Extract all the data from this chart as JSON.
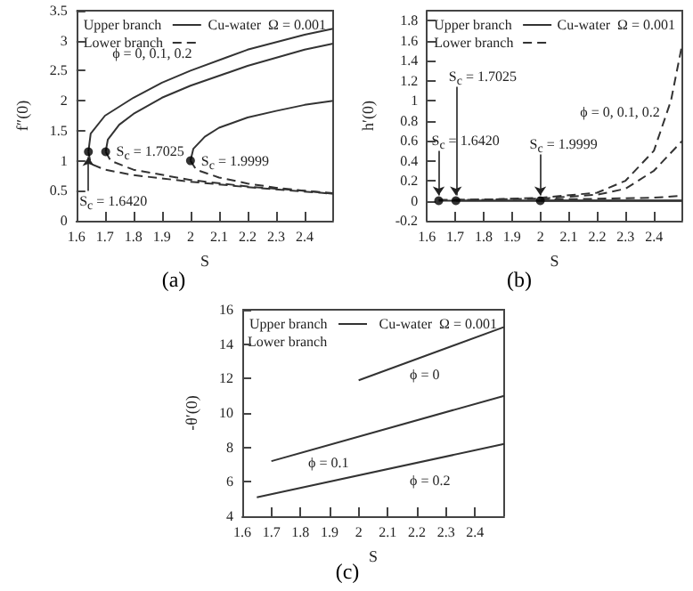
{
  "chart_data": [
    {
      "type": "line",
      "title": "(a)",
      "xlabel": "S",
      "ylabel": "f″(0)",
      "xlim": [
        1.6,
        2.5
      ],
      "xticks": [
        1.6,
        1.7,
        1.8,
        1.9,
        2,
        2.1,
        2.2,
        2.3,
        2.4
      ],
      "ylim": [
        0,
        3.5
      ],
      "yticks": [
        0,
        0.5,
        1,
        1.5,
        2,
        2.5,
        3,
        3.5
      ],
      "grid": false,
      "legend": "top left",
      "marker": "none",
      "annotations": [
        "Cu-water  Ω = 0.001",
        "ϕ = 0, 0.1, 0.2",
        {
          "text": "S$_{c}$ = 1.6420",
          "x": 1.642,
          "y": 1.15
        },
        {
          "text": "S$_{c}$ = 1.7025",
          "x": 1.7025,
          "y": 1.15
        },
        {
          "text": "S$_{c}$ = 1.9999",
          "x": 1.9999,
          "y": 1.0
        }
      ],
      "series": [
        {
          "name": "Upper branch",
          "color": "#333333",
          "line_style": "solid",
          "x": [
            1.642,
            1.65,
            1.7,
            1.8,
            1.9,
            2.0,
            2.2,
            2.4,
            2.5
          ],
          "values": [
            1.15,
            1.45,
            1.75,
            2.05,
            2.3,
            2.5,
            2.85,
            3.1,
            3.2
          ]
        },
        {
          "color": "#333333",
          "line_style": "solid",
          "x": [
            1.7025,
            1.71,
            1.75,
            1.8,
            1.9,
            2.0,
            2.2,
            2.4,
            2.5
          ],
          "values": [
            1.15,
            1.35,
            1.6,
            1.78,
            2.05,
            2.25,
            2.58,
            2.85,
            2.95
          ]
        },
        {
          "color": "#333333",
          "line_style": "solid",
          "x": [
            1.9999,
            2.01,
            2.05,
            2.1,
            2.2,
            2.3,
            2.4,
            2.5
          ],
          "values": [
            1.0,
            1.2,
            1.4,
            1.55,
            1.72,
            1.83,
            1.93,
            2.0
          ]
        },
        {
          "name": "Lower branch",
          "color": "#333333",
          "line_style": "dashed",
          "x": [
            1.642,
            1.65,
            1.7,
            1.8,
            2.0,
            2.2,
            2.5
          ],
          "values": [
            1.15,
            0.95,
            0.85,
            0.76,
            0.65,
            0.56,
            0.45
          ]
        },
        {
          "color": "#333333",
          "line_style": "dashed",
          "x": [
            1.7025,
            1.72,
            1.8,
            2.0,
            2.2,
            2.5
          ],
          "values": [
            1.15,
            1.0,
            0.85,
            0.68,
            0.57,
            0.46
          ]
        },
        {
          "color": "#333333",
          "line_style": "dashed",
          "x": [
            1.9999,
            2.02,
            2.1,
            2.2,
            2.3,
            2.5
          ],
          "values": [
            1.0,
            0.85,
            0.72,
            0.62,
            0.55,
            0.45
          ]
        },
        {
          "type": "scatter",
          "marker": "circle",
          "color": "#000000",
          "x": [
            1.642,
            1.7025,
            1.9999
          ],
          "values": [
            1.15,
            1.15,
            1.0
          ]
        }
      ]
    },
    {
      "type": "line",
      "title": "(b)",
      "xlabel": "S",
      "ylabel": "h′(0)",
      "xlim": [
        1.6,
        2.5
      ],
      "xticks": [
        1.6,
        1.7,
        1.8,
        1.9,
        2,
        2.1,
        2.2,
        2.3,
        2.4
      ],
      "ylim": [
        -0.2,
        1.9
      ],
      "yticks": [
        -0.2,
        0,
        0.2,
        0.4,
        0.6,
        0.8,
        1,
        1.2,
        1.4,
        1.6,
        1.8
      ],
      "grid": false,
      "legend": "top left",
      "marker": "none",
      "annotations": [
        "Cu-water  Ω = 0.001",
        "ϕ = 0, 0.1, 0.2",
        {
          "text": "S$_{c}$ = 1.6420",
          "x": 1.642,
          "y": 0
        },
        {
          "text": "S$_{c}$ = 1.7025",
          "x": 1.7025,
          "y": 0
        },
        {
          "text": "S$_{c}$ = 1.9999",
          "x": 1.9999,
          "y": 0
        }
      ],
      "series": [
        {
          "name": "Upper branch",
          "color": "#333333",
          "line_style": "solid",
          "x": [
            1.642,
            2.0,
            2.5
          ],
          "values": [
            0,
            0,
            0
          ]
        },
        {
          "color": "#333333",
          "line_style": "solid",
          "x": [
            1.7025,
            2.0,
            2.5
          ],
          "values": [
            0,
            0,
            0
          ]
        },
        {
          "color": "#333333",
          "line_style": "solid",
          "x": [
            1.9999,
            2.2,
            2.5
          ],
          "values": [
            0,
            0,
            0
          ]
        },
        {
          "name": "Lower branch",
          "color": "#333333",
          "line_style": "dashed",
          "x": [
            1.642,
            1.8,
            2.0,
            2.2,
            2.3,
            2.4,
            2.46,
            2.5
          ],
          "values": [
            0.01,
            0.01,
            0.03,
            0.08,
            0.2,
            0.5,
            1.0,
            1.57
          ]
        },
        {
          "color": "#333333",
          "line_style": "dashed",
          "x": [
            1.7025,
            2.0,
            2.2,
            2.3,
            2.4,
            2.5
          ],
          "values": [
            0.01,
            0.02,
            0.06,
            0.12,
            0.3,
            0.6
          ]
        },
        {
          "color": "#333333",
          "line_style": "dashed",
          "x": [
            1.9999,
            2.2,
            2.4,
            2.5
          ],
          "values": [
            0.01,
            0.02,
            0.03,
            0.05
          ]
        },
        {
          "type": "scatter",
          "marker": "circle",
          "color": "#000000",
          "x": [
            1.642,
            1.7025,
            1.9999
          ],
          "values": [
            0,
            0,
            0
          ]
        }
      ]
    },
    {
      "type": "line",
      "title": "(c)",
      "xlabel": "S",
      "ylabel": "-θ′(0)",
      "xlim": [
        1.6,
        2.5
      ],
      "xticks": [
        1.6,
        1.7,
        1.8,
        1.9,
        2,
        2.1,
        2.2,
        2.3,
        2.4
      ],
      "ylim": [
        4,
        16
      ],
      "yticks": [
        4,
        6,
        8,
        10,
        12,
        14,
        16
      ],
      "grid": false,
      "legend": "top left",
      "marker": "none",
      "annotations": [
        "Cu-water  Ω = 0.001",
        "Lower branch",
        {
          "text": "ϕ = 0",
          "x": 2.2,
          "y": 13.14
        },
        {
          "text": "ϕ = 0.1",
          "x": 1.9,
          "y": 8.15
        },
        {
          "text": "ϕ = 0.2",
          "x": 2.2,
          "y": 7.1
        }
      ],
      "series": [
        {
          "name": "Upper branch",
          "color": "#333333",
          "line_style": "solid",
          "x": [
            2.0,
            2.5
          ],
          "values": [
            11.9,
            15.0
          ]
        },
        {
          "color": "#333333",
          "line_style": "solid",
          "x": [
            1.7,
            2.5
          ],
          "values": [
            7.2,
            11.0
          ]
        },
        {
          "color": "#333333",
          "line_style": "solid",
          "x": [
            1.65,
            2.5
          ],
          "values": [
            5.1,
            8.2
          ]
        }
      ]
    }
  ]
}
